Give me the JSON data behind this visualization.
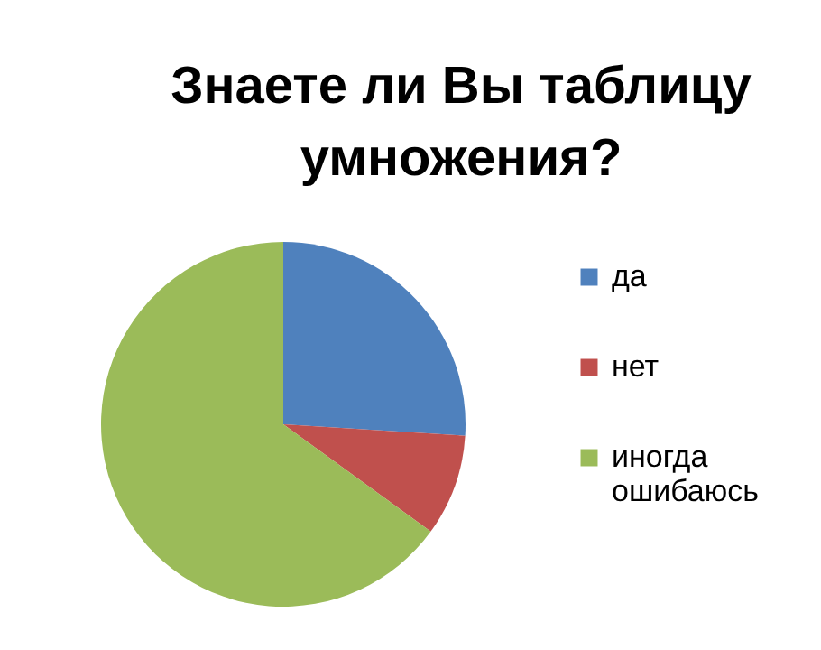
{
  "chart_data": {
    "type": "pie",
    "title": "Знаете ли Вы таблицу умножения?",
    "categories": [
      "да",
      "нет",
      "иногда ошибаюсь"
    ],
    "values": [
      26,
      9,
      65
    ],
    "colors": [
      "#4f81bd",
      "#c0504d",
      "#9bbb59"
    ],
    "legend": "right"
  }
}
